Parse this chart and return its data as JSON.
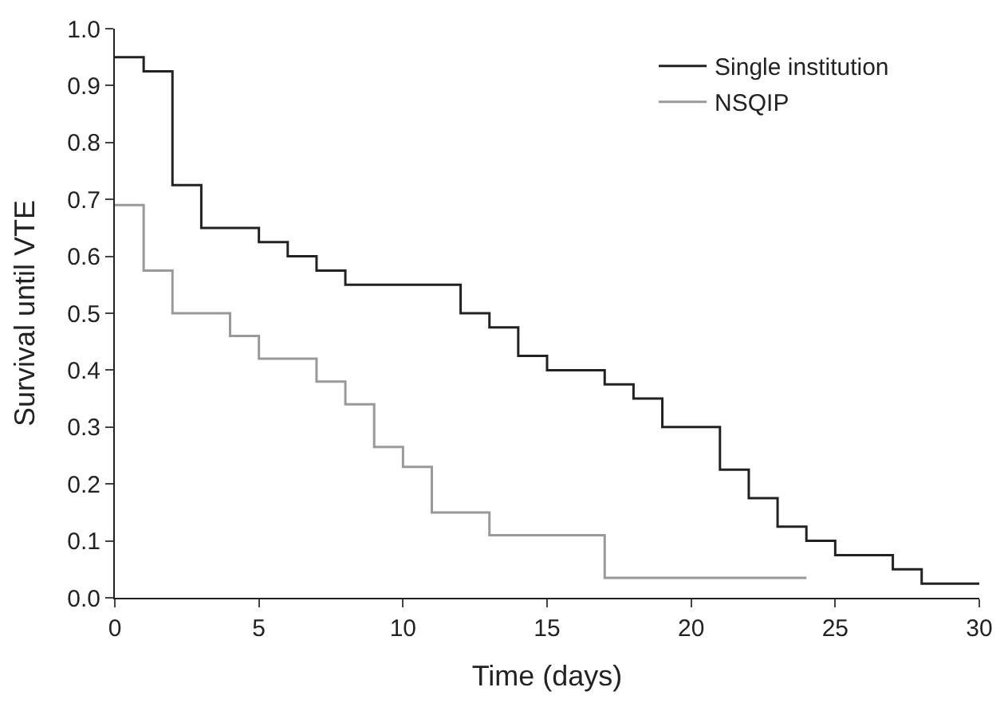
{
  "chart_data": {
    "type": "step",
    "xlabel": "Time (days)",
    "ylabel": "Survival until VTE",
    "xlim": [
      0,
      30
    ],
    "xticks": [
      0,
      5,
      10,
      15,
      20,
      25,
      30
    ],
    "ylim": [
      0,
      1
    ],
    "yticks": [
      {
        "value": 0,
        "label": "0.0"
      },
      0.1,
      0.2,
      0.3,
      0.4,
      0.5,
      0.6,
      0.7,
      0.8,
      0.9,
      {
        "value": 1,
        "label": "1.0"
      }
    ],
    "legend": "top right",
    "series": [
      {
        "name": "Single institution",
        "color": "#222222",
        "x": [
          0,
          1,
          2,
          3,
          5,
          6,
          7,
          8,
          12,
          13,
          14,
          15,
          17,
          18,
          19,
          21,
          22,
          23,
          24,
          25,
          27,
          28,
          30
        ],
        "values": [
          0.95,
          0.925,
          0.725,
          0.65,
          0.625,
          0.6,
          0.575,
          0.55,
          0.5,
          0.475,
          0.425,
          0.4,
          0.375,
          0.35,
          0.3,
          0.225,
          0.175,
          0.125,
          0.1,
          0.075,
          0.05,
          0.025,
          0.025
        ]
      },
      {
        "name": "NSQIP",
        "color": "#999999",
        "x": [
          0,
          1,
          2,
          4,
          5,
          7,
          8,
          9,
          10,
          11,
          13,
          17,
          24
        ],
        "values": [
          0.69,
          0.575,
          0.5,
          0.46,
          0.42,
          0.38,
          0.34,
          0.265,
          0.23,
          0.15,
          0.11,
          0.035,
          0.035
        ]
      }
    ]
  }
}
